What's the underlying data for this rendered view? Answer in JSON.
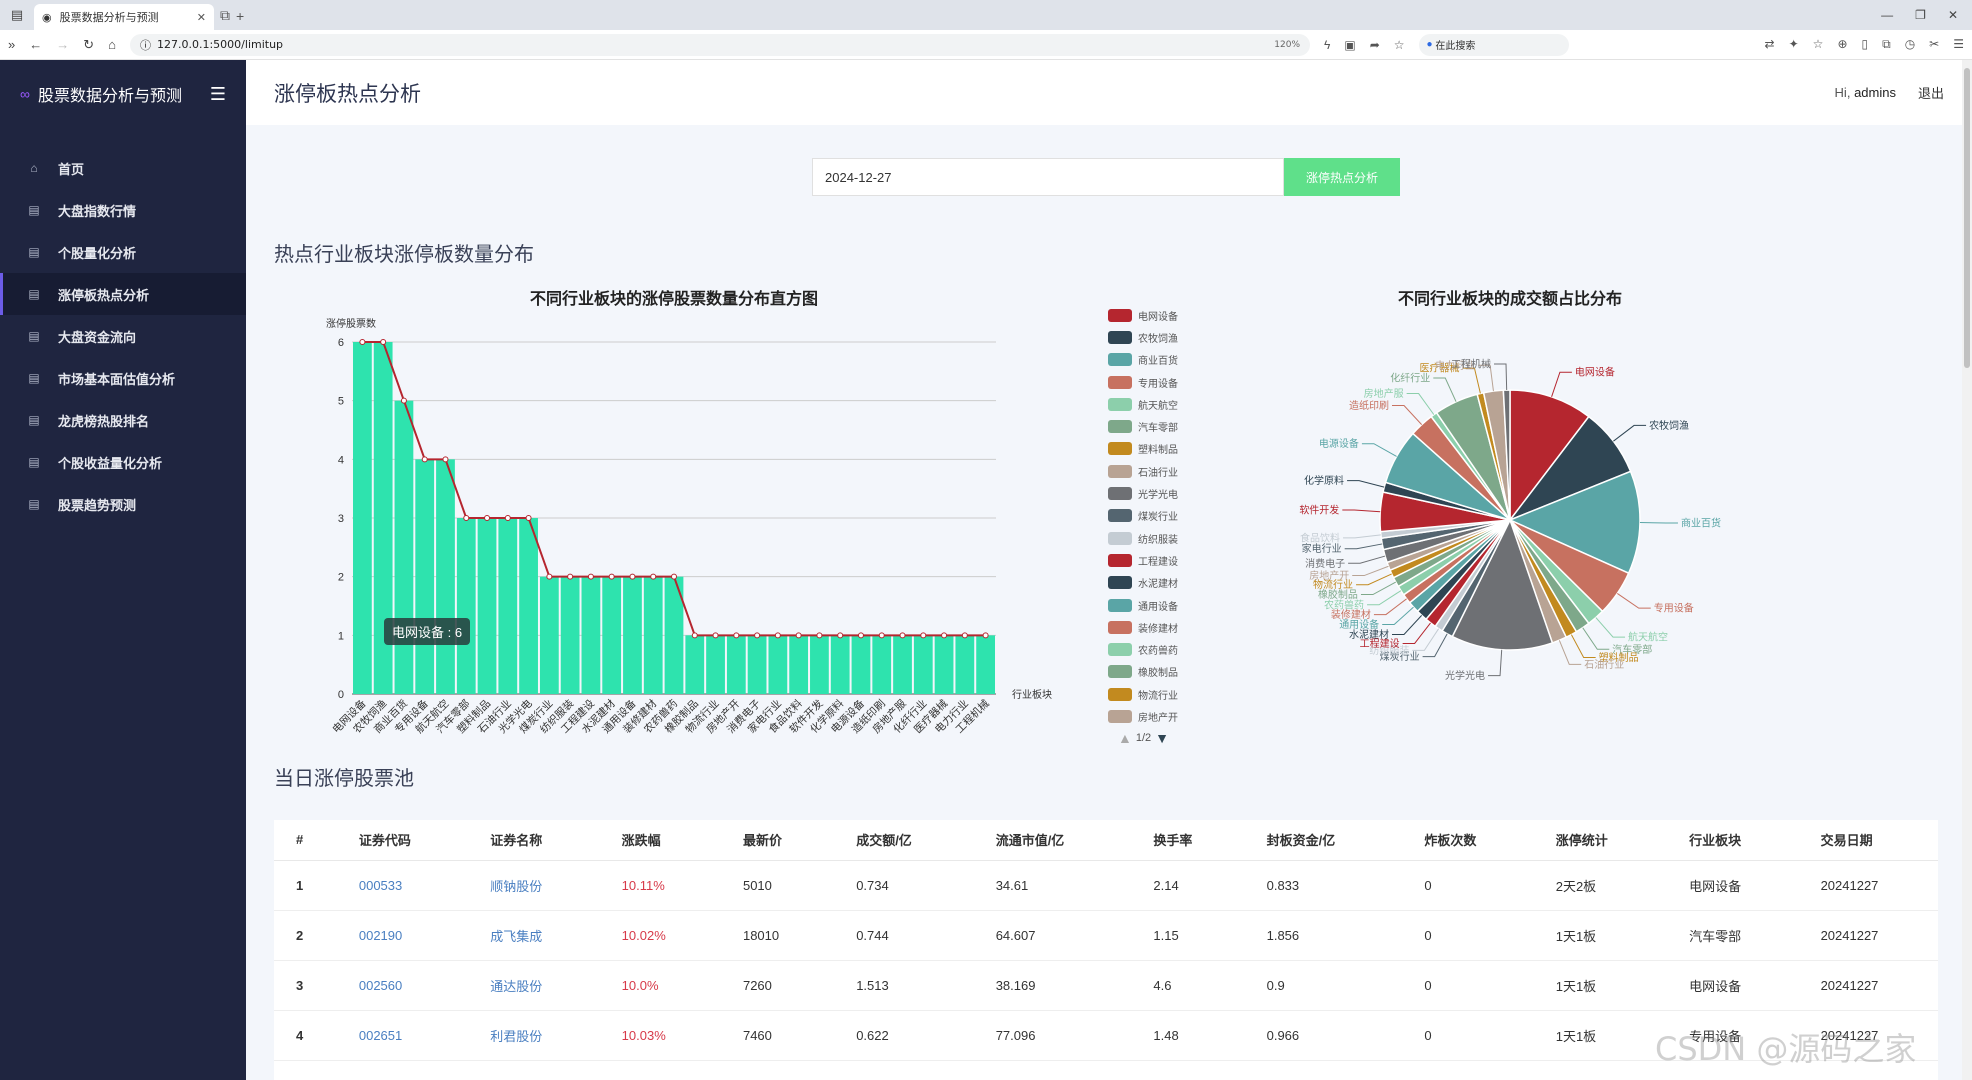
{
  "browser": {
    "tab_title": "股票数据分析与预测",
    "url": "127.0.0.1:5000/limitup",
    "zoom": "120%",
    "search_label": "在此搜索"
  },
  "sidebar": {
    "brand": "股票数据分析与预测",
    "items": [
      {
        "label": "首页",
        "icon": "home-icon"
      },
      {
        "label": "大盘指数行情",
        "icon": "cubes-icon"
      },
      {
        "label": "个股量化分析",
        "icon": "cubes-icon"
      },
      {
        "label": "涨停板热点分析",
        "icon": "cubes-icon"
      },
      {
        "label": "大盘资金流向",
        "icon": "cubes-icon"
      },
      {
        "label": "市场基本面估值分析",
        "icon": "cubes-icon"
      },
      {
        "label": "龙虎榜热股排名",
        "icon": "cubes-icon"
      },
      {
        "label": "个股收益量化分析",
        "icon": "cubes-icon"
      },
      {
        "label": "股票趋势预测",
        "icon": "cubes-icon"
      }
    ],
    "active_index": 3
  },
  "header": {
    "title": "涨停板热点分析",
    "greeting": "Hi,",
    "username": "admins",
    "logout": "退出"
  },
  "form": {
    "date_value": "2024-12-27",
    "button_label": "涨停热点分析"
  },
  "sections": {
    "chart_section": "热点行业板块涨停板数量分布",
    "table_section": "当日涨停股票池"
  },
  "chart_data": [
    {
      "type": "bar",
      "title": "不同行业板块的涨停股票数量分布直方图",
      "ylabel": "涨停股票数",
      "xlabel": "行业板块",
      "ylim": [
        0,
        6
      ],
      "yticks": [
        0,
        1,
        2,
        3,
        4,
        5,
        6
      ],
      "categories": [
        "电网设备",
        "农牧饲渔",
        "商业百货",
        "专用设备",
        "航天航空",
        "汽车零部",
        "塑料制品",
        "石油行业",
        "光学光电",
        "煤炭行业",
        "纺织服装",
        "工程建设",
        "水泥建材",
        "通用设备",
        "装修建材",
        "农药兽药",
        "橡胶制品",
        "物流行业",
        "房地产开",
        "消费电子",
        "家电行业",
        "食品饮料",
        "软件开发",
        "化学原料",
        "电源设备",
        "造纸印刷",
        "房地产服",
        "化纤行业",
        "医疗器械",
        "电力行业",
        "工程机械"
      ],
      "values": [
        6,
        6,
        5,
        4,
        4,
        3,
        3,
        3,
        3,
        2,
        2,
        2,
        2,
        2,
        2,
        2,
        1,
        1,
        1,
        1,
        1,
        1,
        1,
        1,
        1,
        1,
        1,
        1,
        1,
        1,
        1
      ],
      "grid": true,
      "tooltip": "电网设备 : 6",
      "line_overlay": true
    },
    {
      "type": "pie",
      "title": "不同行业板块的成交额占比分布",
      "slices": [
        {
          "name": "电网设备",
          "value": 10.2,
          "color": "#b5262f"
        },
        {
          "name": "农牧饲渔",
          "value": 8.4,
          "color": "#2f4553"
        },
        {
          "name": "商业百货",
          "value": 12.6,
          "color": "#5aa5a6"
        },
        {
          "name": "专用设备",
          "value": 5.6,
          "color": "#c77160"
        },
        {
          "name": "航天航空",
          "value": 2.2,
          "color": "#8ccfab"
        },
        {
          "name": "汽车零部",
          "value": 1.8,
          "color": "#7ea88a"
        },
        {
          "name": "塑料制品",
          "value": 1.4,
          "color": "#c28a1f"
        },
        {
          "name": "石油行业",
          "value": 1.8,
          "color": "#b8a394"
        },
        {
          "name": "光学光电",
          "value": 12.4,
          "color": "#6e7074"
        },
        {
          "name": "煤炭行业",
          "value": 1.4,
          "color": "#546570"
        },
        {
          "name": "纺织服装",
          "value": 1.0,
          "color": "#c4ccd3"
        },
        {
          "name": "工程建设",
          "value": 1.4,
          "color": "#b5262f"
        },
        {
          "name": "水泥建材",
          "value": 1.4,
          "color": "#2f4553"
        },
        {
          "name": "通用设备",
          "value": 1.4,
          "color": "#5aa5a6"
        },
        {
          "name": "装修建材",
          "value": 1.2,
          "color": "#c77160"
        },
        {
          "name": "农药兽药",
          "value": 1.2,
          "color": "#8ccfab"
        },
        {
          "name": "橡胶制品",
          "value": 1.2,
          "color": "#7ea88a"
        },
        {
          "name": "物流行业",
          "value": 1.0,
          "color": "#c28a1f"
        },
        {
          "name": "房地产开",
          "value": 1.0,
          "color": "#b8a394"
        },
        {
          "name": "消费电子",
          "value": 1.6,
          "color": "#6e7074"
        },
        {
          "name": "家电行业",
          "value": 1.4,
          "color": "#546570"
        },
        {
          "name": "食品饮料",
          "value": 0.8,
          "color": "#c4ccd3"
        },
        {
          "name": "软件开发",
          "value": 4.8,
          "color": "#b5262f"
        },
        {
          "name": "化学原料",
          "value": 1.2,
          "color": "#2f4553"
        },
        {
          "name": "电源设备",
          "value": 6.8,
          "color": "#5aa5a6"
        },
        {
          "name": "造纸印刷",
          "value": 3.0,
          "color": "#c77160"
        },
        {
          "name": "房地产服",
          "value": 0.8,
          "color": "#8ccfab"
        },
        {
          "name": "化纤行业",
          "value": 5.4,
          "color": "#7ea88a"
        },
        {
          "name": "医疗器械",
          "value": 0.8,
          "color": "#c28a1f"
        },
        {
          "name": "电力行业",
          "value": 2.4,
          "color": "#b8a394"
        },
        {
          "name": "工程机械",
          "value": 0.8,
          "color": "#6e7074"
        }
      ]
    }
  ],
  "legend": {
    "items": [
      {
        "name": "电网设备",
        "color": "#b5262f"
      },
      {
        "name": "农牧饲渔",
        "color": "#2f4553"
      },
      {
        "name": "商业百货",
        "color": "#5aa5a6"
      },
      {
        "name": "专用设备",
        "color": "#c77160"
      },
      {
        "name": "航天航空",
        "color": "#8ccfab"
      },
      {
        "name": "汽车零部",
        "color": "#7ea88a"
      },
      {
        "name": "塑料制品",
        "color": "#c28a1f"
      },
      {
        "name": "石油行业",
        "color": "#b8a394"
      },
      {
        "name": "光学光电",
        "color": "#6e7074"
      },
      {
        "name": "煤炭行业",
        "color": "#546570"
      },
      {
        "name": "纺织服装",
        "color": "#c4ccd3"
      },
      {
        "name": "工程建设",
        "color": "#b5262f"
      },
      {
        "name": "水泥建材",
        "color": "#2f4553"
      },
      {
        "name": "通用设备",
        "color": "#5aa5a6"
      },
      {
        "name": "装修建材",
        "color": "#c77160"
      },
      {
        "name": "农药兽药",
        "color": "#8ccfab"
      },
      {
        "name": "橡胶制品",
        "color": "#7ea88a"
      },
      {
        "name": "物流行业",
        "color": "#c28a1f"
      },
      {
        "name": "房地产开",
        "color": "#b8a394"
      }
    ],
    "pager": "1/2"
  },
  "table": {
    "headers": [
      "#",
      "证券代码",
      "证券名称",
      "涨跌幅",
      "最新价",
      "成交额/亿",
      "流通市值/亿",
      "换手率",
      "封板资金/亿",
      "炸板次数",
      "涨停统计",
      "行业板块",
      "交易日期"
    ],
    "rows": [
      [
        "1",
        "000533",
        "顺钠股份",
        "10.11%",
        "5010",
        "0.734",
        "34.61",
        "2.14",
        "0.833",
        "0",
        "2天2板",
        "电网设备",
        "20241227"
      ],
      [
        "2",
        "002190",
        "成飞集成",
        "10.02%",
        "18010",
        "0.744",
        "64.607",
        "1.15",
        "1.856",
        "0",
        "1天1板",
        "汽车零部",
        "20241227"
      ],
      [
        "3",
        "002560",
        "通达股份",
        "10.0%",
        "7260",
        "1.513",
        "38.169",
        "4.6",
        "0.9",
        "0",
        "1天1板",
        "电网设备",
        "20241227"
      ],
      [
        "4",
        "002651",
        "利君股份",
        "10.03%",
        "7460",
        "0.622",
        "77.096",
        "1.48",
        "0.966",
        "0",
        "1天1板",
        "专用设备",
        "20241227"
      ]
    ]
  },
  "watermark": "CSDN @源码之家",
  "colors": {
    "bar": "#2ee3ae",
    "line": "#b5262f",
    "accent_button": "#5fe08a",
    "sidebar": "#1f2540"
  }
}
